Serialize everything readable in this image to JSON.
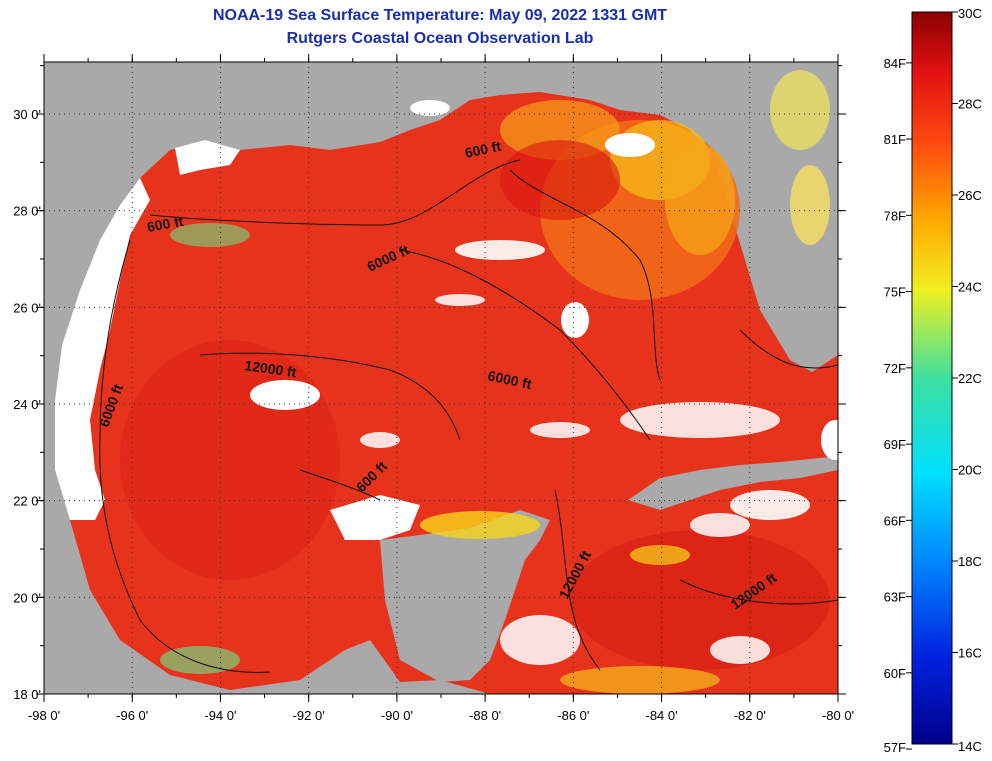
{
  "header": {
    "title_line1": "NOAA-19 Sea Surface Temperature:  May 09, 2022 1331 GMT",
    "title_line2": "Rutgers Coastal Ocean Observation Lab"
  },
  "map": {
    "lon_ticks": [
      "-98 0'",
      "-96 0'",
      "-94 0'",
      "-92 0'",
      "-90 0'",
      "-88 0'",
      "-86 0'",
      "-84 0'",
      "-82 0'",
      "-80 0'"
    ],
    "lat_ticks": [
      "30 0'",
      "28 0'",
      "26 0'",
      "24 0'",
      "22 0'",
      "20 0'",
      "18 0'"
    ],
    "contour_labels": [
      "600 ft",
      "600 ft",
      "6000 ft",
      "12000 ft",
      "6000 ft",
      "6000 ft",
      "600 ft",
      "12000 ft",
      "12000 ft"
    ],
    "colors": {
      "land": "#a9a9a9",
      "cloud": "#ffffff",
      "sst_main": "#e8331c",
      "sst_warm": "#d8180e",
      "sst_orange": "#f26d16",
      "sst_yellow": "#f8d41a",
      "sst_green": "#79d07a"
    }
  },
  "colorbar": {
    "celsius_labels": [
      "30C",
      "28C",
      "26C",
      "24C",
      "22C",
      "20C",
      "18C",
      "16C",
      "14C"
    ],
    "fahrenheit_labels": [
      "84F",
      "81F",
      "78F",
      "75F",
      "72F",
      "69F",
      "66F",
      "63F",
      "60F",
      "57F"
    ],
    "celsius_values": [
      30,
      28,
      26,
      24,
      22,
      20,
      18,
      16,
      14
    ],
    "fahrenheit_values": [
      84,
      81,
      78,
      75,
      72,
      69,
      66,
      63,
      60,
      57
    ]
  }
}
